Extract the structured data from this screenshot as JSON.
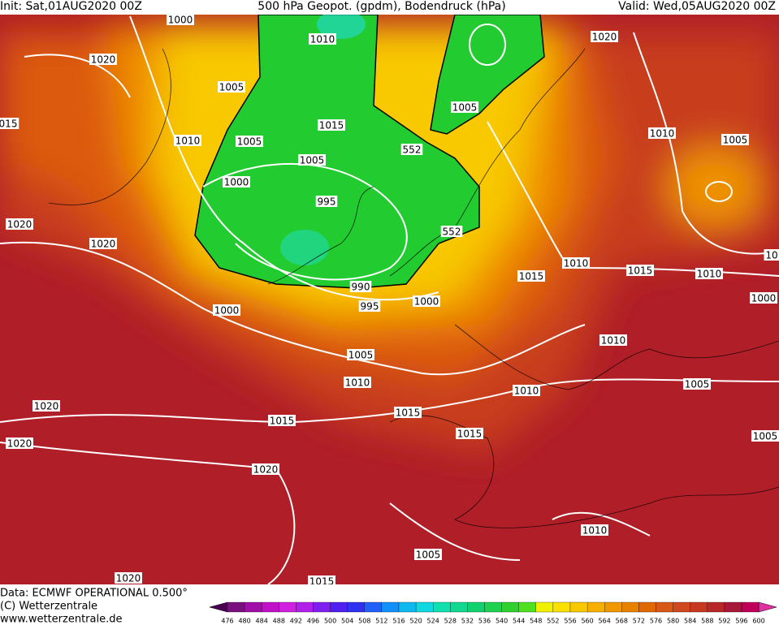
{
  "header": {
    "init": "Init: Sat,01AUG2020 00Z",
    "title": "500 hPa Geopot. (gpdm), Bodendruck (hPa)",
    "valid": "Valid: Wed,05AUG2020 00Z"
  },
  "isobar_labels": [
    "1000",
    "1010",
    "1020",
    "1020",
    "1005",
    "1005",
    "1015",
    "1010",
    "1005",
    "1010",
    "1005",
    "1005",
    "552",
    "1000",
    "995",
    "1020",
    "552",
    "1020",
    "1010",
    "1015",
    "1015",
    "1010",
    "990",
    "1000",
    "995",
    "1000",
    "1000",
    "1010",
    "1005",
    "1010",
    "1005",
    "1010",
    "1020",
    "1015",
    "1015",
    "1015",
    "1020",
    "1005",
    "1020",
    "1010",
    "1005",
    "1020",
    "1015",
    "015",
    "10"
  ],
  "footer": {
    "data": "Data: ECMWF OPERATIONAL 0.500°",
    "copyright": "(C) Wetterzentrale",
    "url": "www.wetterzentrale.de"
  },
  "colorbar": {
    "levels": [
      476,
      480,
      484,
      488,
      492,
      496,
      500,
      504,
      508,
      512,
      516,
      520,
      524,
      528,
      532,
      536,
      540,
      544,
      548,
      552,
      556,
      560,
      564,
      568,
      572,
      576,
      580,
      584,
      588,
      592,
      596,
      600
    ],
    "colors": [
      "#4a0050",
      "#7a1080",
      "#a010a8",
      "#c010c8",
      "#d020e0",
      "#b020e8",
      "#8020f0",
      "#5020f0",
      "#3030f0",
      "#2060f8",
      "#1090f8",
      "#10b8f0",
      "#10d8e0",
      "#10e0b0",
      "#10d890",
      "#10d070",
      "#20d050",
      "#30d030",
      "#50e020",
      "#f0f000",
      "#f8e000",
      "#f8c800",
      "#f8b000",
      "#f09800",
      "#e88000",
      "#e06800",
      "#d85818",
      "#d04820",
      "#c83820",
      "#b82828",
      "#a81838",
      "#c00058",
      "#e030a0"
    ]
  }
}
